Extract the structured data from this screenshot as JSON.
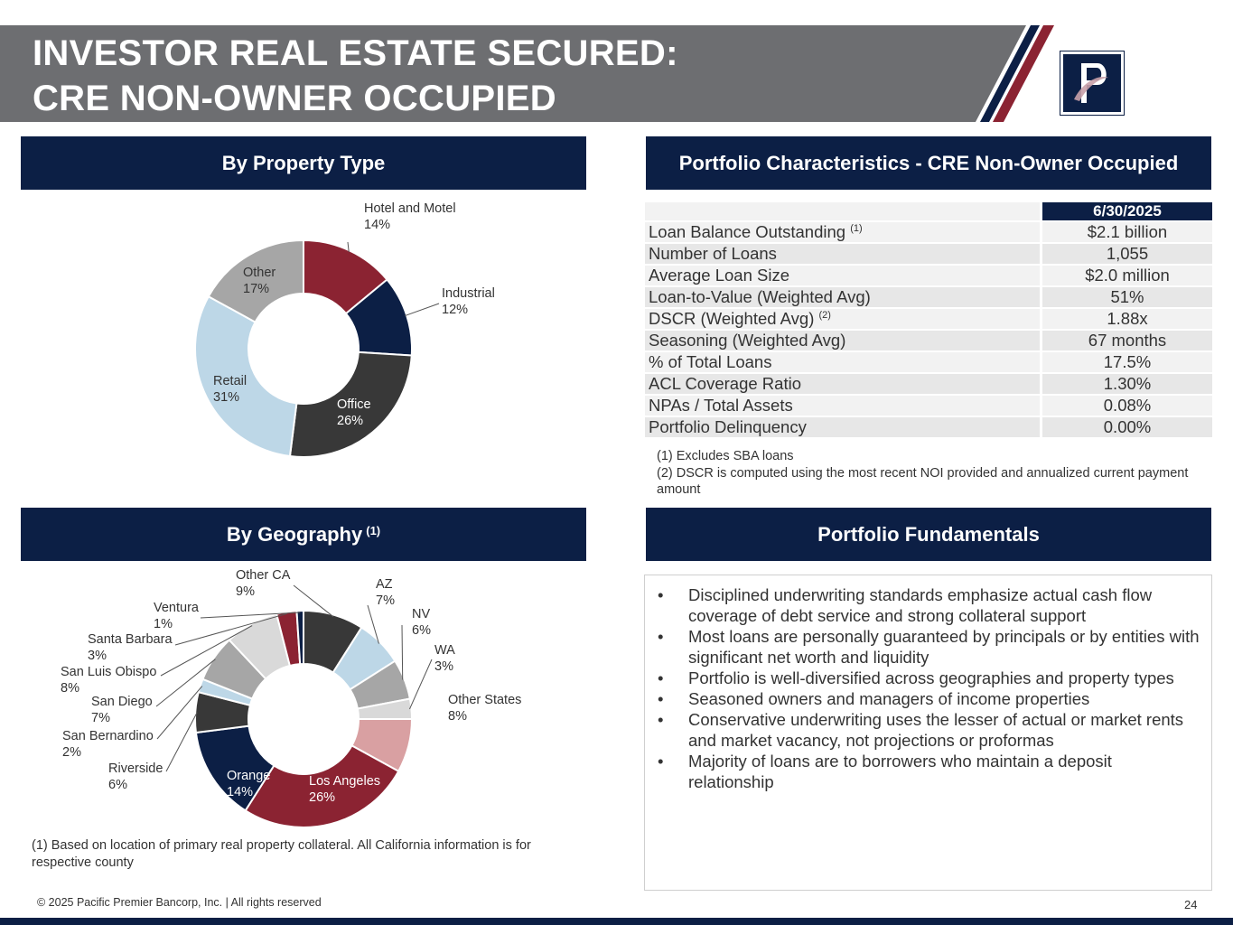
{
  "header": {
    "title_line1": "INVESTOR REAL ESTATE SECURED:",
    "title_line2": "CRE NON-OWNER OCCUPIED",
    "colors": {
      "band": "#6d6e71",
      "navy": "#0c1f45",
      "red": "#8b2332"
    }
  },
  "sections": {
    "property_type": "By Property Type",
    "characteristics": "Portfolio Characteristics - CRE Non-Owner Occupied",
    "geography": "By Geography",
    "geography_sup": "(1)",
    "fundamentals": "Portfolio Fundamentals"
  },
  "chart_data": [
    {
      "type": "pie",
      "subtype": "donut",
      "categories": [
        "Hotel and Motel",
        "Industrial",
        "Office",
        "Retail",
        "Other"
      ],
      "values": [
        14,
        12,
        26,
        31,
        17
      ],
      "labels": [
        "14%",
        "12%",
        "26%",
        "31%",
        "17%"
      ],
      "colors": [
        "#8b2332",
        "#0c1f45",
        "#383838",
        "#bdd7e7",
        "#a6a6a6"
      ]
    },
    {
      "type": "pie",
      "subtype": "donut",
      "categories": [
        "Other CA",
        "AZ",
        "NV",
        "WA",
        "Other States",
        "Los Angeles",
        "Orange",
        "Riverside",
        "San Bernardino",
        "San Diego",
        "San Luis Obispo",
        "Santa Barbara",
        "Ventura"
      ],
      "values": [
        9,
        7,
        6,
        3,
        8,
        26,
        14,
        6,
        2,
        7,
        8,
        3,
        1
      ],
      "labels": [
        "9%",
        "7%",
        "6%",
        "3%",
        "8%",
        "26%",
        "14%",
        "6%",
        "2%",
        "7%",
        "8%",
        "3%",
        "1%"
      ],
      "colors": [
        "#383838",
        "#bdd7e7",
        "#a6a6a6",
        "#d9d9d9",
        "#d9a0a2",
        "#8b2332",
        "#0c1f45",
        "#383838",
        "#bdd7e7",
        "#a6a6a6",
        "#d9d9d9",
        "#8b2332",
        "#0c1f45"
      ]
    }
  ],
  "characteristics": {
    "column_header": "6/30/2025",
    "rows": [
      {
        "label": "Loan Balance Outstanding ",
        "sup": "(1)",
        "value": "$2.1 billion"
      },
      {
        "label": "Number of Loans",
        "sup": "",
        "value": "1,055"
      },
      {
        "label": "Average Loan Size",
        "sup": "",
        "value": "$2.0 million"
      },
      {
        "label": "Loan-to-Value (Weighted Avg)",
        "sup": "",
        "value": "51%"
      },
      {
        "label": "DSCR (Weighted Avg) ",
        "sup": "(2)",
        "value": "1.88x"
      },
      {
        "label": "Seasoning (Weighted Avg)",
        "sup": "",
        "value": "67 months"
      },
      {
        "label": "% of Total Loans",
        "sup": "",
        "value": "17.5%"
      },
      {
        "label": "ACL Coverage Ratio",
        "sup": "",
        "value": "1.30%"
      },
      {
        "label": "NPAs / Total Assets",
        "sup": "",
        "value": "0.08%"
      },
      {
        "label": "Portfolio Delinquency",
        "sup": "",
        "value": "0.00%"
      }
    ],
    "note1": "(1) Excludes SBA loans",
    "note2": "(2) DSCR is computed using the most recent NOI provided and annualized current payment amount"
  },
  "fundamentals": {
    "bullet": "•",
    "items": [
      "Disciplined underwriting standards emphasize actual cash flow coverage of debt service and strong collateral support",
      "Most loans are personally guaranteed by principals or by entities with significant net worth and liquidity",
      "Portfolio is well-diversified across geographies and property types",
      "Seasoned owners and managers of income properties",
      "Conservative underwriting uses the lesser of actual or market rents and market vacancy, not projections or proformas",
      "Majority of loans are to borrowers who maintain a deposit relationship"
    ]
  },
  "geo_note": "(1) Based on location of primary real property collateral. All California information is for respective county",
  "footer": {
    "copyright": "© 2025 Pacific Premier Bancorp, Inc. | All rights reserved",
    "page_number": "24"
  }
}
